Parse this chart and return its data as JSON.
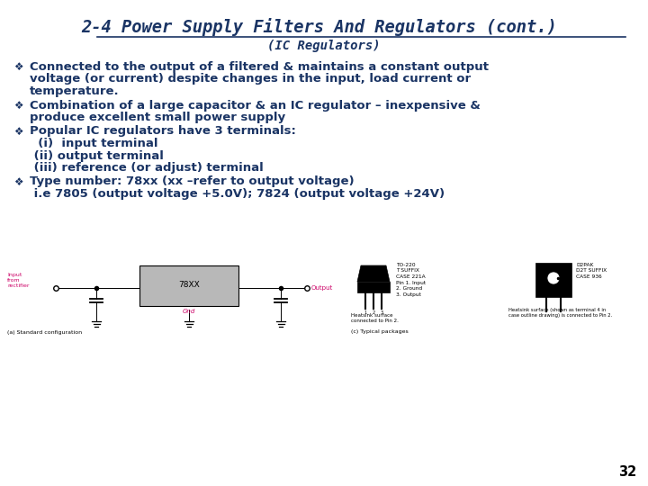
{
  "title": "2-4 Power Supply Filters And Regulators (cont.)",
  "subtitle": "(IC Regulators)",
  "title_color": "#1a3464",
  "subtitle_color": "#1a3464",
  "bg_color": "#ffffff",
  "page_number": "32",
  "bullet_color": "#1a3464",
  "text_color": "#1a3464",
  "pink_color": "#cc0066",
  "title_fontsize": 13.5,
  "subtitle_fontsize": 10,
  "body_fontsize": 9.5,
  "bullet_char": "❖",
  "body_items": [
    {
      "bullet": true,
      "lines": [
        "Connected to the output of a filtered & maintains a constant output",
        "voltage (or current) despite changes in the input, load current or",
        "temperature."
      ]
    },
    {
      "bullet": true,
      "lines": [
        "Combination of a large capacitor & an IC regulator – inexpensive &",
        "produce excellent small power supply"
      ]
    },
    {
      "bullet": true,
      "lines": [
        "Popular IC regulators have 3 terminals:",
        "  (i)  input terminal",
        " (ii) output terminal",
        " (iii) reference (or adjust) terminal"
      ]
    },
    {
      "bullet": true,
      "lines": [
        "Type number: 78xx (xx –refer to output voltage)",
        " i.e 7805 (output voltage +5.0V); 7824 (output voltage +24V)"
      ]
    }
  ]
}
